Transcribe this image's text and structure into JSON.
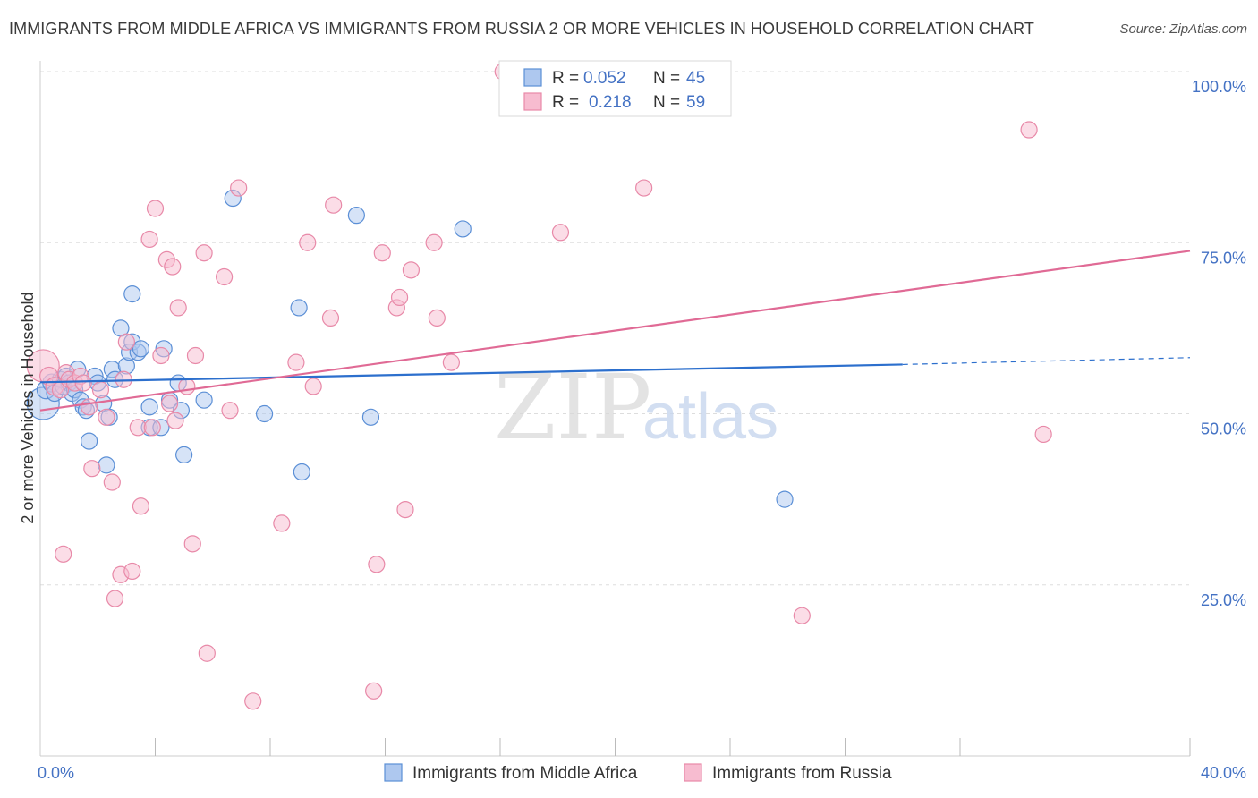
{
  "header": {
    "title": "IMMIGRANTS FROM MIDDLE AFRICA VS IMMIGRANTS FROM RUSSIA 2 OR MORE VEHICLES IN HOUSEHOLD CORRELATION CHART",
    "source": "Source: ZipAtlas.com"
  },
  "watermark": {
    "zip": "ZIP",
    "atlas": "atlas"
  },
  "colors": {
    "blue_fill": "#aec8ef",
    "blue_stroke": "#5b8fd6",
    "blue_line": "#2c6fcd",
    "pink_fill": "#f7bcd0",
    "pink_stroke": "#e889a8",
    "pink_line": "#e06a95",
    "grid": "#dddddd",
    "tick_text": "#4472c4"
  },
  "legend": {
    "r_label": "R =",
    "n_label": "N =",
    "rows": [
      {
        "r": "0.052",
        "n": "45"
      },
      {
        "r": "0.218",
        "n": "59"
      }
    ]
  },
  "chart_data": {
    "type": "scatter",
    "title": "IMMIGRANTS FROM MIDDLE AFRICA VS IMMIGRANTS FROM RUSSIA 2 OR MORE VEHICLES IN HOUSEHOLD CORRELATION CHART",
    "xlabel": "",
    "ylabel": "2 or more Vehicles in Household",
    "xlim": [
      0,
      40
    ],
    "ylim": [
      0,
      100
    ],
    "x_tick_labels": [
      "0.0%",
      "40.0%"
    ],
    "y_ticks": [
      25,
      50,
      75,
      100
    ],
    "y_tick_labels": [
      "25.0%",
      "50.0%",
      "75.0%",
      "100.0%"
    ],
    "grid": true,
    "legend_position": "top-center",
    "series": [
      {
        "name": "Immigrants from Middle Africa",
        "r": 0.052,
        "n": 45,
        "trend": {
          "x0": 0,
          "y0": 54.6,
          "x1": 30,
          "y1": 57.2,
          "dashed_to_x": 40,
          "dashed_to_y": 58.2
        },
        "points": [
          [
            0.1,
            51.5,
            18
          ],
          [
            0.2,
            53.5,
            10
          ],
          [
            0.4,
            54.5,
            10
          ],
          [
            0.5,
            53.0,
            9
          ],
          [
            0.7,
            55.0,
            9
          ],
          [
            0.8,
            54.0,
            9
          ],
          [
            0.9,
            55.5,
            9
          ],
          [
            1.0,
            54.5,
            9
          ],
          [
            1.1,
            53.0,
            9
          ],
          [
            1.2,
            53.5,
            9
          ],
          [
            1.3,
            56.5,
            9
          ],
          [
            1.4,
            52.0,
            9
          ],
          [
            1.5,
            51.0,
            9
          ],
          [
            1.6,
            50.5,
            9
          ],
          [
            1.7,
            46.0,
            9
          ],
          [
            1.9,
            55.5,
            9
          ],
          [
            2.0,
            54.5,
            9
          ],
          [
            2.2,
            51.5,
            9
          ],
          [
            2.3,
            42.5,
            9
          ],
          [
            2.4,
            49.5,
            9
          ],
          [
            2.5,
            56.5,
            9
          ],
          [
            2.6,
            55.0,
            9
          ],
          [
            2.8,
            62.5,
            9
          ],
          [
            3.0,
            57.0,
            9
          ],
          [
            3.1,
            59.0,
            9
          ],
          [
            3.2,
            60.5,
            9
          ],
          [
            3.2,
            67.5,
            9
          ],
          [
            3.4,
            59.0,
            9
          ],
          [
            3.5,
            59.5,
            9
          ],
          [
            3.8,
            48.0,
            9
          ],
          [
            3.8,
            51.0,
            9
          ],
          [
            4.2,
            48.0,
            9
          ],
          [
            4.3,
            59.5,
            9
          ],
          [
            4.5,
            52.0,
            9
          ],
          [
            4.8,
            54.5,
            9
          ],
          [
            4.9,
            50.5,
            9
          ],
          [
            5.0,
            44.0,
            9
          ],
          [
            5.7,
            52.0,
            9
          ],
          [
            6.7,
            81.5,
            9
          ],
          [
            7.8,
            50.0,
            9
          ],
          [
            9.0,
            65.5,
            9
          ],
          [
            9.1,
            41.5,
            9
          ],
          [
            11.0,
            79.0,
            9
          ],
          [
            11.5,
            49.5,
            9
          ],
          [
            14.7,
            77.0,
            9
          ],
          [
            25.9,
            37.5,
            9
          ]
        ]
      },
      {
        "name": "Immigrants from Russia",
        "r": 0.218,
        "n": 59,
        "trend": {
          "x0": 0,
          "y0": 50.5,
          "x1": 40,
          "y1": 73.8
        },
        "points": [
          [
            0.1,
            57.0,
            18
          ],
          [
            0.3,
            55.5,
            10
          ],
          [
            0.5,
            54.0,
            10
          ],
          [
            0.7,
            53.5,
            9
          ],
          [
            0.8,
            29.5,
            9
          ],
          [
            0.9,
            56.0,
            9
          ],
          [
            1.0,
            55.0,
            9
          ],
          [
            1.2,
            54.5,
            9
          ],
          [
            1.4,
            55.5,
            9
          ],
          [
            1.5,
            54.5,
            9
          ],
          [
            1.7,
            51.0,
            9
          ],
          [
            1.8,
            42.0,
            9
          ],
          [
            2.1,
            53.5,
            9
          ],
          [
            2.3,
            49.5,
            9
          ],
          [
            2.5,
            40.0,
            9
          ],
          [
            2.6,
            23.0,
            9
          ],
          [
            2.8,
            26.5,
            9
          ],
          [
            2.9,
            55.0,
            9
          ],
          [
            3.0,
            60.5,
            9
          ],
          [
            3.2,
            27.0,
            9
          ],
          [
            3.4,
            48.0,
            9
          ],
          [
            3.5,
            36.5,
            9
          ],
          [
            3.8,
            75.5,
            9
          ],
          [
            3.9,
            48.0,
            9
          ],
          [
            4.0,
            80.0,
            9
          ],
          [
            4.2,
            58.5,
            9
          ],
          [
            4.4,
            72.5,
            9
          ],
          [
            4.5,
            51.5,
            9
          ],
          [
            4.6,
            71.5,
            9
          ],
          [
            4.7,
            49.0,
            9
          ],
          [
            4.8,
            65.5,
            9
          ],
          [
            5.1,
            54.0,
            9
          ],
          [
            5.3,
            31.0,
            9
          ],
          [
            5.4,
            58.5,
            9
          ],
          [
            5.7,
            73.5,
            9
          ],
          [
            5.8,
            15.0,
            9
          ],
          [
            6.4,
            70.0,
            9
          ],
          [
            6.6,
            50.5,
            9
          ],
          [
            6.9,
            83.0,
            9
          ],
          [
            7.4,
            8.0,
            9
          ],
          [
            8.4,
            34.0,
            9
          ],
          [
            8.9,
            57.5,
            9
          ],
          [
            9.3,
            75.0,
            9
          ],
          [
            9.5,
            54.0,
            9
          ],
          [
            10.1,
            64.0,
            9
          ],
          [
            10.2,
            80.5,
            9
          ],
          [
            11.6,
            9.5,
            9
          ],
          [
            11.7,
            28.0,
            9
          ],
          [
            11.9,
            73.5,
            9
          ],
          [
            12.4,
            65.5,
            9
          ],
          [
            12.5,
            67.0,
            9
          ],
          [
            12.7,
            36.0,
            9
          ],
          [
            12.9,
            71.0,
            9
          ],
          [
            13.7,
            75.0,
            9
          ],
          [
            13.8,
            64.0,
            9
          ],
          [
            14.3,
            57.5,
            9
          ],
          [
            16.1,
            100.0,
            9
          ],
          [
            18.1,
            76.5,
            9
          ],
          [
            21.0,
            83.0,
            9
          ],
          [
            26.5,
            20.5,
            9
          ],
          [
            34.4,
            91.5,
            9
          ],
          [
            34.9,
            47.0,
            9
          ]
        ]
      }
    ]
  }
}
